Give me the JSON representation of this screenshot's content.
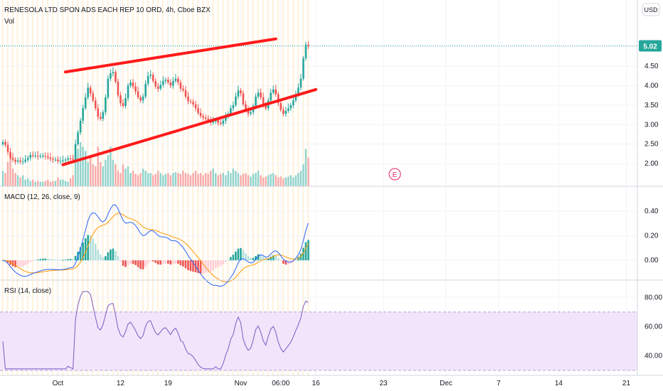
{
  "header": {
    "symbol_title": "RENESOLA LTD SPON ADS EACH REP 10 ORD, 4h, Cboe BZX",
    "vol_label": "Vol",
    "currency_badge": "USD",
    "last_price_label": "5.02"
  },
  "colors": {
    "up": "#26a69a",
    "down": "#ef5350",
    "up_vol": "#8fd3cb",
    "down_vol": "#f7a9a7",
    "channel": "#ff1a1a",
    "macd_line": "#2962ff",
    "signal_line": "#ff9800",
    "rsi_line": "#7e57c2",
    "rsi_band": "#f1e5fb",
    "session_stripe": "#fff3df",
    "earnings": "#e91e63"
  },
  "chart_data": [
    {
      "type": "candlestick",
      "title": "RENESOLA LTD SPON ADS EACH REP 10 ORD, 4h, Cboe BZX",
      "currency": "USD",
      "interval": "4h",
      "ylim": [
        1.6,
        5.65
      ],
      "y_ticks": [
        "5.00",
        "4.50",
        "4.00",
        "3.50",
        "3.00",
        "2.50",
        "2.00"
      ],
      "x_ticks": [
        "Oct",
        "12",
        "19",
        "Nov",
        "06:00",
        "16",
        "23",
        "Dec",
        "7",
        "14",
        "21"
      ],
      "last_price": 5.02,
      "earnings_marker": "E",
      "closes": [
        2.55,
        2.48,
        2.3,
        2.15,
        2.1,
        2.05,
        2.08,
        2.05,
        2.05,
        2.1,
        2.15,
        2.22,
        2.2,
        2.2,
        2.18,
        2.2,
        2.2,
        2.18,
        2.15,
        2.12,
        2.1,
        2.1,
        2.06,
        2.07,
        2.08,
        2.1,
        2.13,
        2.12,
        2.1,
        2.5,
        2.8,
        3.1,
        3.42,
        3.7,
        3.95,
        3.8,
        3.62,
        3.42,
        3.2,
        3.15,
        3.32,
        3.7,
        4.18,
        4.32,
        4.35,
        4.1,
        3.75,
        3.55,
        3.48,
        3.68,
        4.0,
        4.08,
        3.98,
        3.85,
        3.7,
        3.62,
        3.72,
        4.05,
        4.25,
        4.28,
        4.12,
        3.98,
        3.92,
        4.02,
        4.12,
        4.15,
        4.08,
        4.0,
        4.12,
        4.18,
        4.08,
        3.92,
        3.88,
        3.72,
        3.6,
        3.58,
        3.52,
        3.42,
        3.3,
        3.22,
        3.18,
        3.15,
        3.1,
        3.05,
        3.08,
        3.12,
        3.05,
        3.02,
        3.1,
        3.2,
        3.28,
        3.42,
        3.5,
        3.72,
        3.88,
        3.8,
        3.52,
        3.38,
        3.28,
        3.32,
        3.48,
        3.72,
        3.82,
        3.7,
        3.52,
        3.42,
        3.62,
        3.82,
        3.9,
        3.78,
        3.55,
        3.38,
        3.28,
        3.35,
        3.42,
        3.5,
        3.62,
        3.78,
        3.95,
        4.18,
        4.7,
        5.05,
        5.02
      ],
      "volumes": [
        0.35,
        0.3,
        0.55,
        0.7,
        0.4,
        0.3,
        0.25,
        0.2,
        0.25,
        0.15,
        0.18,
        0.12,
        0.15,
        0.1,
        0.12,
        0.1,
        0.1,
        0.12,
        0.15,
        0.1,
        0.12,
        0.12,
        0.2,
        0.15,
        0.15,
        0.12,
        0.1,
        0.18,
        0.25,
        0.75,
        0.85,
        1.0,
        0.9,
        0.8,
        0.55,
        0.7,
        0.5,
        0.45,
        0.9,
        0.55,
        0.45,
        0.6,
        0.7,
        0.9,
        0.6,
        0.5,
        0.35,
        0.3,
        0.5,
        0.4,
        0.45,
        0.3,
        0.35,
        0.28,
        0.25,
        0.3,
        0.4,
        0.35,
        0.3,
        0.3,
        0.25,
        0.28,
        0.35,
        0.3,
        0.25,
        0.28,
        0.3,
        0.25,
        0.3,
        0.32,
        0.3,
        0.28,
        0.35,
        0.3,
        0.28,
        0.25,
        0.3,
        0.35,
        0.28,
        0.3,
        0.25,
        0.3,
        0.28,
        0.35,
        0.4,
        0.3,
        0.25,
        0.28,
        0.3,
        0.25,
        0.35,
        0.3,
        0.4,
        0.35,
        0.3,
        0.25,
        0.28,
        0.3,
        0.25,
        0.22,
        0.28,
        0.3,
        0.35,
        0.25,
        0.2,
        0.22,
        0.25,
        0.28,
        0.3,
        0.25,
        0.2,
        0.22,
        0.18,
        0.2,
        0.22,
        0.25,
        0.2,
        0.25,
        0.3,
        0.35,
        0.5,
        0.85,
        0.65
      ],
      "channel": {
        "upper_start": {
          "bar": 25,
          "price": 4.35
        },
        "upper_end": {
          "bar": 109,
          "price": 5.2
        },
        "lower_start": {
          "bar": 24,
          "price": 1.97
        },
        "lower_end": {
          "bar": 125,
          "price": 3.9
        }
      }
    },
    {
      "type": "line",
      "title": "MACD (12, 26, close, 9)",
      "series_names": [
        "MACD",
        "Signal",
        "Histogram"
      ],
      "ylim": [
        -0.08,
        0.5
      ],
      "y_ticks": [
        "0.40",
        "0.20",
        "0.00"
      ]
    },
    {
      "type": "line",
      "title": "RSI (14, close)",
      "ylim": [
        30,
        85
      ],
      "y_ticks": [
        "80.00",
        "60.00",
        "40.00"
      ],
      "band": [
        30,
        70
      ]
    }
  ]
}
